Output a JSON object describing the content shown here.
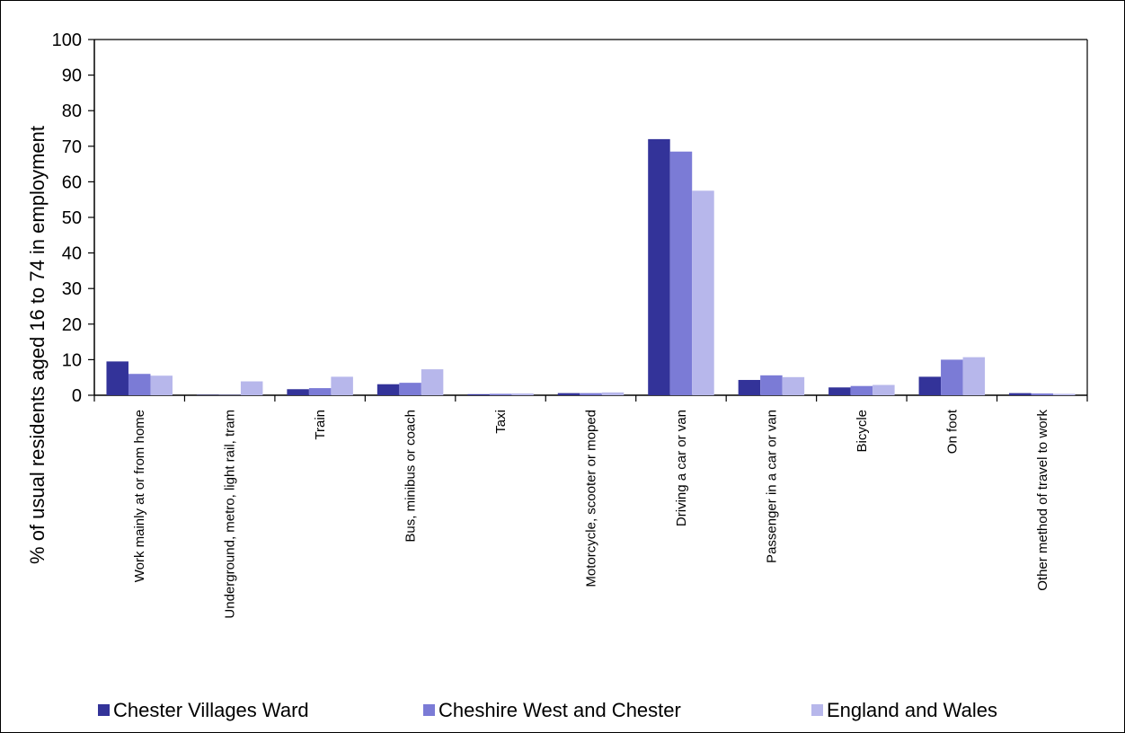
{
  "chart_data": {
    "type": "bar",
    "ylabel": "% of usual residents aged 16 to 74 in employment",
    "xlabel": "",
    "ylim": [
      0,
      100
    ],
    "yticks": [
      0,
      10,
      20,
      30,
      40,
      50,
      60,
      70,
      80,
      90,
      100
    ],
    "grid": false,
    "legend_position": "bottom",
    "categories": [
      "Work mainly at or from home",
      "Underground, metro, light rail, tram",
      "Train",
      "Bus, minibus or coach",
      "Taxi",
      "Motorcycle, scooter or moped",
      "Driving a car or van",
      "Passenger in a car or van",
      "Bicycle",
      "On foot",
      "Other method of travel to work"
    ],
    "series": [
      {
        "name": "Chester Villages Ward",
        "color": "#333399",
        "values": [
          9.5,
          0.1,
          1.7,
          3.1,
          0.3,
          0.6,
          72.0,
          4.3,
          2.2,
          5.2,
          0.6
        ]
      },
      {
        "name": "Cheshire West and Chester",
        "color": "#7b7bd6",
        "values": [
          6.0,
          0.1,
          2.0,
          3.5,
          0.4,
          0.6,
          68.5,
          5.6,
          2.6,
          10.0,
          0.5
        ]
      },
      {
        "name": "England and Wales",
        "color": "#b7b7eb",
        "values": [
          5.5,
          3.9,
          5.2,
          7.3,
          0.5,
          0.8,
          57.5,
          5.1,
          2.9,
          10.7,
          0.4
        ]
      }
    ]
  }
}
